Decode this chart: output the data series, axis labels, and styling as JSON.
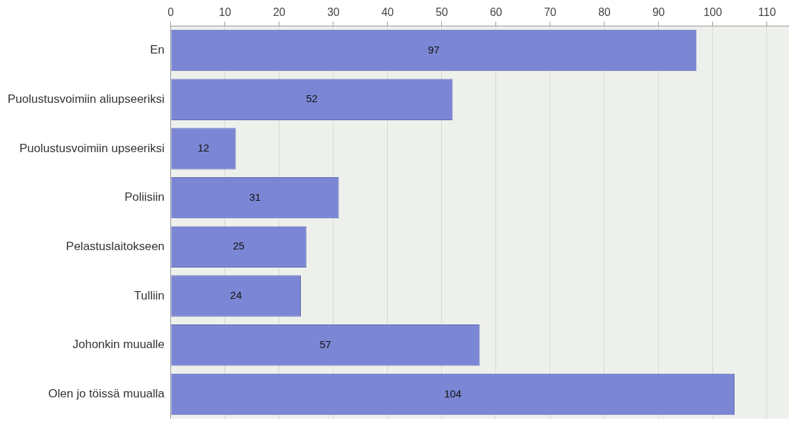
{
  "chart_data": {
    "type": "bar",
    "orientation": "horizontal",
    "categories": [
      "En",
      "Puolustusvoimiin aliupseeriksi",
      "Puolustusvoimiin upseeriksi",
      "Poliisiin",
      "Pelastuslaitokseen",
      "Tulliin",
      "Johonkin muualle",
      "Olen jo töissä muualla"
    ],
    "values": [
      97,
      52,
      12,
      31,
      25,
      24,
      57,
      104
    ],
    "color": "#7b87d4",
    "xlim": [
      0,
      114
    ],
    "xticks": [
      0,
      10,
      20,
      30,
      40,
      50,
      60,
      70,
      80,
      90,
      100,
      110
    ],
    "grid": "x",
    "data_labels": true
  }
}
